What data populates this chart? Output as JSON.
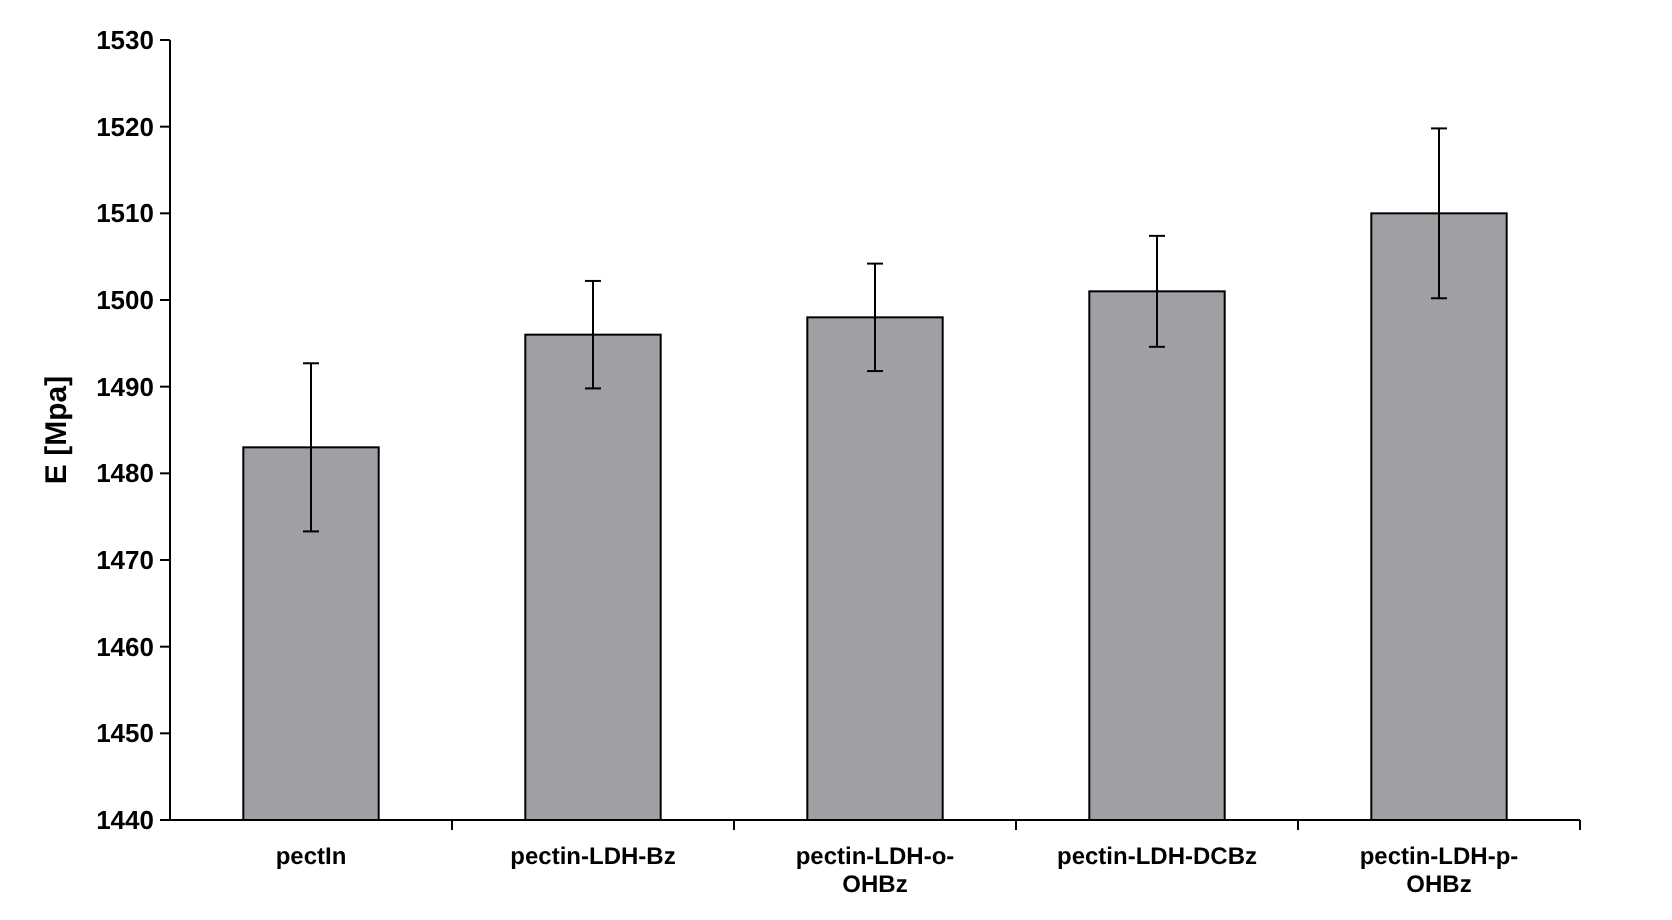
{
  "chart_data": {
    "type": "bar",
    "ylabel": "E [Mpa]",
    "categories": [
      "pectIn",
      "pectin-LDH-Bz",
      "pectin-LDH-o-OHBz",
      "pectin-LDH-DCBz",
      "pectin-LDH-p-OHBz"
    ],
    "values": [
      1483,
      1496,
      1498,
      1501,
      1510
    ],
    "errors": [
      9.7,
      6.2,
      6.2,
      6.4,
      9.8
    ],
    "color": "#a0a0a4",
    "ylim": [
      1440,
      1530
    ],
    "yticks": [
      1440,
      1450,
      1460,
      1470,
      1480,
      1490,
      1500,
      1510,
      1520,
      1530
    ],
    "grid": false
  }
}
